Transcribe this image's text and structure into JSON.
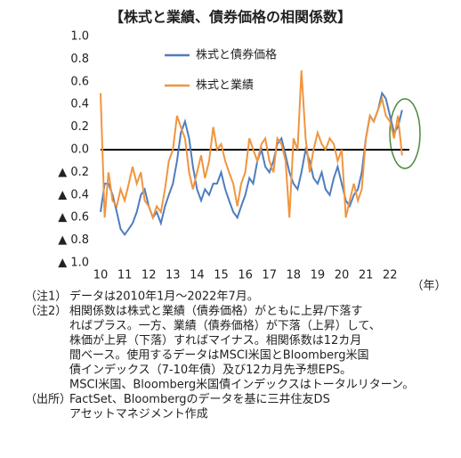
{
  "chart_data": {
    "type": "line",
    "title": "【株式と業績、債券価格の相関係数】",
    "x_unit_label": "（年）",
    "xlim": [
      10,
      22.8
    ],
    "xticks": [
      10,
      11,
      12,
      13,
      14,
      15,
      16,
      17,
      18,
      19,
      20,
      21,
      22
    ],
    "ylim": [
      -1,
      1
    ],
    "yticks": [
      {
        "value": 1,
        "label": "1.0"
      },
      {
        "value": 0.8,
        "label": "0.8"
      },
      {
        "value": 0.6,
        "label": "0.6"
      },
      {
        "value": 0.4,
        "label": "0.4"
      },
      {
        "value": 0.2,
        "label": "0.2"
      },
      {
        "value": 0,
        "label": "0.0"
      },
      {
        "value": -0.2,
        "label": "▲ 0.2"
      },
      {
        "value": -0.4,
        "label": "▲ 0.4"
      },
      {
        "value": -0.6,
        "label": "▲ 0.6"
      },
      {
        "value": -0.8,
        "label": "▲ 0.8"
      },
      {
        "value": -1,
        "label": "▲ 1.0"
      }
    ],
    "x": [
      10.0,
      10.17,
      10.33,
      10.5,
      10.67,
      10.83,
      11.0,
      11.17,
      11.33,
      11.5,
      11.67,
      11.83,
      12.0,
      12.17,
      12.33,
      12.5,
      12.67,
      12.83,
      13.0,
      13.17,
      13.33,
      13.5,
      13.67,
      13.83,
      14.0,
      14.17,
      14.33,
      14.5,
      14.67,
      14.83,
      15.0,
      15.17,
      15.33,
      15.5,
      15.67,
      15.83,
      16.0,
      16.17,
      16.33,
      16.5,
      16.67,
      16.83,
      17.0,
      17.17,
      17.33,
      17.5,
      17.67,
      17.83,
      18.0,
      18.17,
      18.33,
      18.5,
      18.67,
      18.83,
      19.0,
      19.17,
      19.33,
      19.5,
      19.67,
      19.83,
      20.0,
      20.17,
      20.33,
      20.5,
      20.67,
      20.83,
      21.0,
      21.17,
      21.33,
      21.5,
      21.67,
      21.83,
      22.0,
      22.17,
      22.33,
      22.5
    ],
    "series": [
      {
        "name": "株式と債券価格",
        "color": "#4f7dc0",
        "values": [
          -0.55,
          -0.3,
          -0.3,
          -0.4,
          -0.55,
          -0.7,
          -0.75,
          -0.7,
          -0.65,
          -0.55,
          -0.4,
          -0.35,
          -0.5,
          -0.6,
          -0.55,
          -0.65,
          -0.5,
          -0.4,
          -0.3,
          -0.1,
          0.15,
          0.25,
          0.1,
          -0.15,
          -0.35,
          -0.45,
          -0.35,
          -0.4,
          -0.3,
          -0.3,
          -0.2,
          -0.35,
          -0.45,
          -0.55,
          -0.6,
          -0.5,
          -0.4,
          -0.25,
          -0.3,
          -0.1,
          0.0,
          -0.15,
          -0.2,
          -0.1,
          0.05,
          0.1,
          -0.05,
          -0.2,
          -0.3,
          -0.35,
          -0.2,
          0.0,
          -0.1,
          -0.25,
          -0.3,
          -0.2,
          -0.35,
          -0.4,
          -0.25,
          -0.15,
          -0.3,
          -0.45,
          -0.5,
          -0.4,
          -0.35,
          -0.2,
          0.1,
          0.3,
          0.25,
          0.35,
          0.5,
          0.45,
          0.3,
          0.15,
          0.2,
          0.35
        ]
      },
      {
        "name": "株式と業績",
        "color": "#f0953f",
        "values": [
          0.5,
          -0.6,
          -0.2,
          -0.45,
          -0.5,
          -0.35,
          -0.45,
          -0.3,
          -0.15,
          -0.3,
          -0.2,
          -0.45,
          -0.5,
          -0.6,
          -0.5,
          -0.55,
          -0.35,
          -0.1,
          0.0,
          0.3,
          0.2,
          0.1,
          -0.2,
          -0.35,
          -0.2,
          -0.05,
          -0.25,
          -0.1,
          0.2,
          0.0,
          0.05,
          -0.1,
          -0.2,
          -0.3,
          -0.5,
          -0.3,
          -0.2,
          0.1,
          0.0,
          -0.1,
          0.05,
          0.1,
          -0.1,
          -0.2,
          0.1,
          0.05,
          -0.1,
          -0.6,
          0.1,
          0.0,
          0.7,
          0.1,
          -0.2,
          0.0,
          0.15,
          0.05,
          0.0,
          0.1,
          0.05,
          -0.1,
          0.0,
          -0.6,
          -0.45,
          -0.3,
          -0.45,
          -0.35,
          0.1,
          0.3,
          0.25,
          0.35,
          0.45,
          0.3,
          0.25,
          0.1,
          0.3,
          -0.05
        ]
      }
    ]
  },
  "notes": [
    {
      "label": "（注1）",
      "lines": [
        "データは2010年1月～2022年7月。"
      ]
    },
    {
      "label": "（注2）",
      "lines": [
        "相関係数は株式と業績（債券価格）がともに上昇/下落す",
        "ればプラス。一方、業績（債券価格）が下落（上昇）して、",
        "株価が上昇（下落）すればマイナス。相関係数は12カ月",
        "間ベース。使用するデータはMSCI米国とBloomberg米国",
        "債インデックス（7-10年債）及び12カ月先予想EPS。",
        "MSCI米国、Bloomberg米国債インデックスはトータルリターン。"
      ]
    },
    {
      "label": "（出所）",
      "lines": [
        "FactSet、Bloombergのデータを基に三井住友DS",
        "アセットマネジメント作成"
      ]
    }
  ]
}
